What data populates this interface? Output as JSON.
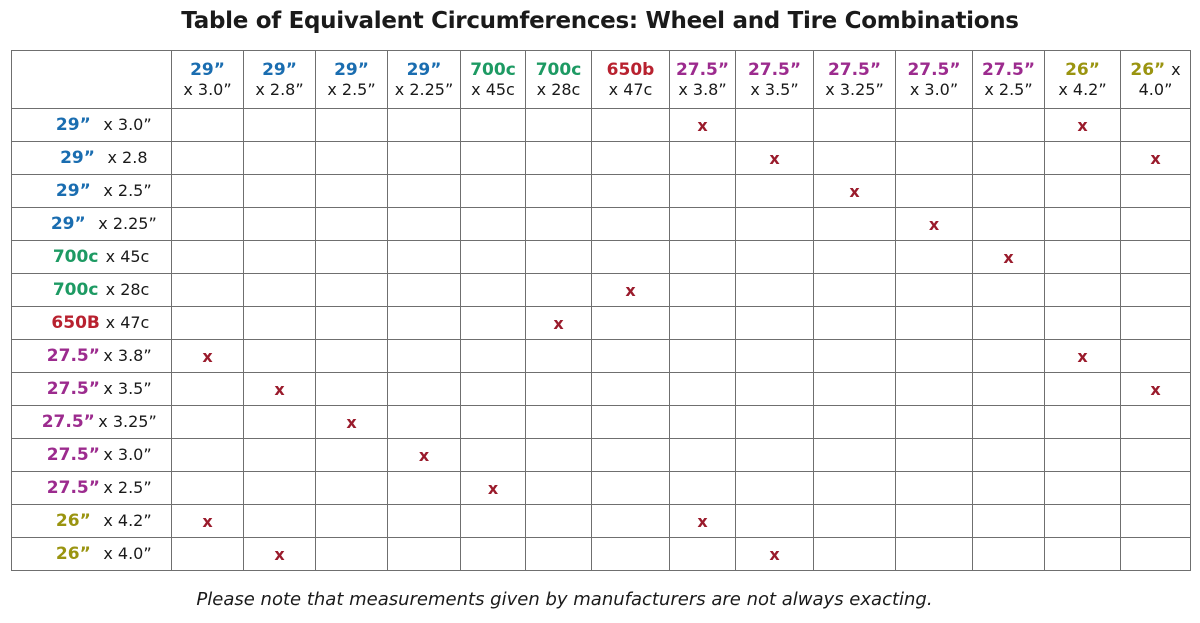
{
  "title": "Table of Equivalent Circumferences: Wheel and Tire Combinations",
  "note": "Please note that measurements given by manufacturers are not always exacting.",
  "colors": {
    "29": "#1a6db0",
    "700c": "#1d9a63",
    "650b": "#b8212f",
    "27.5": "#9c2b8e",
    "26": "#9a9410",
    "mark": "#9a1b2c"
  },
  "columns": [
    {
      "size": "29”",
      "width": "x 3.0”",
      "family": "29"
    },
    {
      "size": "29”",
      "width": "x 2.8”",
      "family": "29"
    },
    {
      "size": "29”",
      "width": "x 2.5”",
      "family": "29"
    },
    {
      "size": "29”",
      "width": "x 2.25”",
      "family": "29"
    },
    {
      "size": "700c",
      "width": "x 45c",
      "family": "700c"
    },
    {
      "size": "700c",
      "width": "x 28c",
      "family": "700c"
    },
    {
      "size": "650b",
      "width": "x 47c",
      "family": "650b"
    },
    {
      "size": "27.5”",
      "width": "x 3.8”",
      "family": "27.5"
    },
    {
      "size": "27.5”",
      "width": "x 3.5”",
      "family": "27.5"
    },
    {
      "size": "27.5”",
      "width": "x 3.25”",
      "family": "27.5"
    },
    {
      "size": "27.5”",
      "width": "x 3.0”",
      "family": "27.5"
    },
    {
      "size": "27.5”",
      "width": "x 2.5”",
      "family": "27.5"
    },
    {
      "size": "26”",
      "width": "x 4.2”",
      "family": "26"
    },
    {
      "size": "26”",
      "width": "4.0”",
      "family": "26",
      "inline_suffix": "x"
    }
  ],
  "rows": [
    {
      "size": "29”",
      "width": "x 3.0”",
      "family": "29",
      "marks": [
        7,
        12
      ]
    },
    {
      "size": "29”",
      "width": "x 2.8",
      "family": "29",
      "marks": [
        8,
        13
      ]
    },
    {
      "size": "29”",
      "width": "x 2.5”",
      "family": "29",
      "marks": [
        9
      ]
    },
    {
      "size": "29”",
      "width": "x 2.25”",
      "family": "29",
      "marks": [
        10
      ]
    },
    {
      "size": "700c",
      "width": "x 45c",
      "family": "700c",
      "marks": [
        11
      ]
    },
    {
      "size": "700c",
      "width": "x 28c",
      "family": "700c",
      "marks": [
        6
      ]
    },
    {
      "size": "650B",
      "width": "x 47c",
      "family": "650b",
      "marks": [
        5
      ]
    },
    {
      "size": "27.5”",
      "width": "x 3.8”",
      "family": "27.5",
      "marks": [
        0,
        12
      ]
    },
    {
      "size": "27.5”",
      "width": "x 3.5”",
      "family": "27.5",
      "marks": [
        1,
        13
      ]
    },
    {
      "size": "27.5”",
      "width": "x 3.25”",
      "family": "27.5",
      "marks": [
        2
      ]
    },
    {
      "size": "27.5”",
      "width": "x 3.0”",
      "family": "27.5",
      "marks": [
        3
      ]
    },
    {
      "size": "27.5”",
      "width": "x 2.5”",
      "family": "27.5",
      "marks": [
        4
      ]
    },
    {
      "size": "26”",
      "width": "x 4.2”",
      "family": "26",
      "marks": [
        0,
        7
      ]
    },
    {
      "size": "26”",
      "width": "x 4.0”",
      "family": "26",
      "marks": [
        1,
        8
      ]
    }
  ],
  "mark_symbol": "x"
}
